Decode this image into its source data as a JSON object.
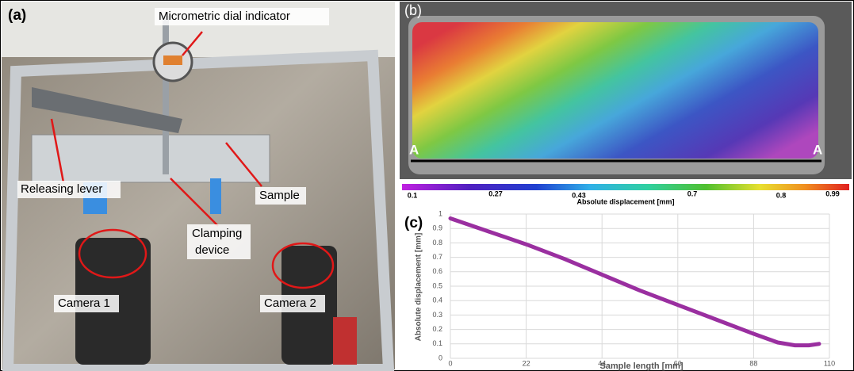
{
  "panels": {
    "a": {
      "label": "(a)",
      "dial": "Micrometric dial indicator",
      "lever": "Releasing lever",
      "sample": "Sample",
      "clamp_1": "Clamping",
      "clamp_2": "device",
      "camera_1": "Camera 1",
      "camera_2": "Camera 2"
    },
    "b": {
      "label": "(b)",
      "section_left": "A",
      "section_right": "A",
      "colorbar": {
        "labels": [
          0.1,
          0.27,
          0.43,
          0.7,
          0.8,
          0.99
        ],
        "title": "Absolute displacement [mm]"
      }
    }
  },
  "chart_data": {
    "type": "line",
    "label": "(c)",
    "x_label": "Sample length [mm]",
    "y_label": "Absolute displacement [mm]",
    "x": [
      0,
      11,
      22,
      33,
      44,
      55,
      66,
      77,
      88,
      95,
      100,
      104,
      107
    ],
    "values": [
      0.97,
      0.88,
      0.79,
      0.69,
      0.58,
      0.47,
      0.37,
      0.27,
      0.17,
      0.11,
      0.09,
      0.09,
      0.1
    ],
    "color": "#9a2fa0",
    "xlim": [
      0,
      110
    ],
    "xticks": [
      0,
      22,
      44,
      66,
      88,
      110
    ],
    "ylim": [
      0,
      1
    ],
    "yticks": [
      0,
      0.1,
      0.2,
      0.3,
      0.4,
      0.5,
      0.6,
      0.7,
      0.8,
      0.9,
      1
    ],
    "grid": true
  }
}
